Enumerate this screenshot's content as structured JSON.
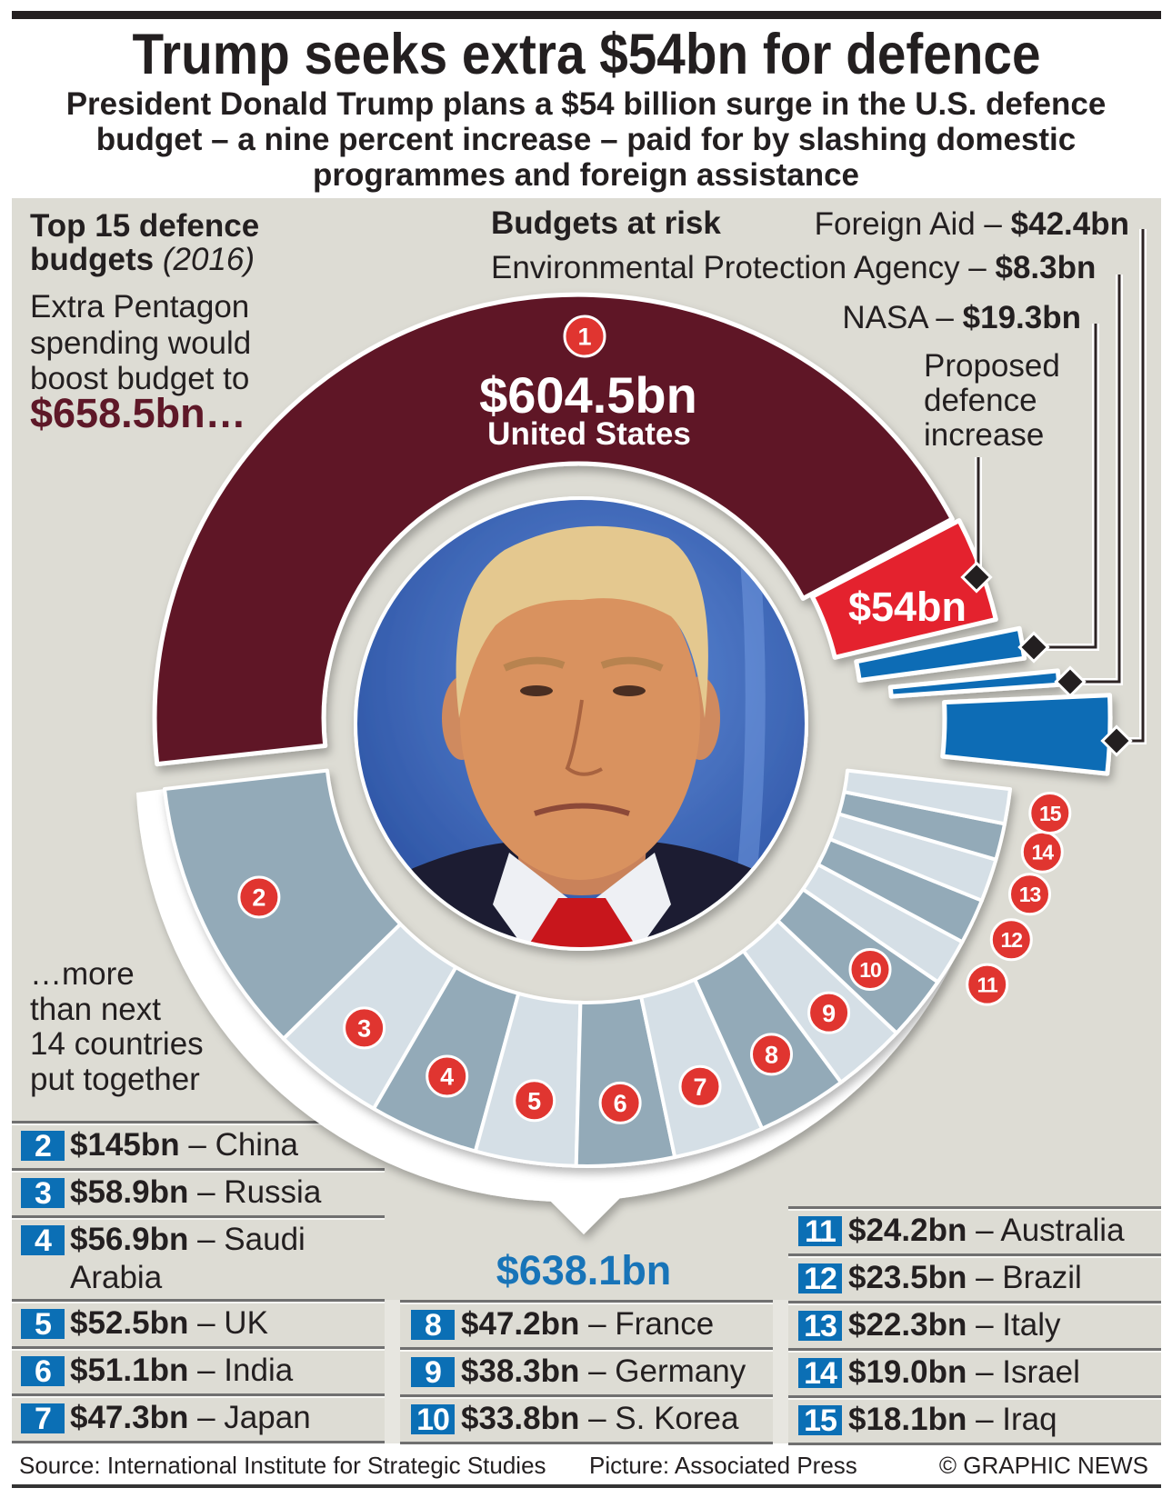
{
  "header": {
    "title": "Trump seeks extra $54bn for defence",
    "subtitle_lines": [
      "President Donald Trump plans a $54 billion surge in the U.S. defence",
      "budget – a nine percent increase – paid for by slashing domestic",
      "programmes and foreign assistance"
    ]
  },
  "separator": "–",
  "colors": {
    "panel": "#dddcd4",
    "us": "#5e1828",
    "increase": "#e4232d",
    "at_risk": "#0a6cb5",
    "slice_dark": "#93aab8",
    "slice_light": "#d5dfe6",
    "badge": "#e03530",
    "total": "#1874b8",
    "rank_box": "#0b6fb5"
  },
  "chart_data": {
    "type": "pie",
    "title_parts": [
      "Top 15 defence",
      "budgets",
      "(2016)"
    ],
    "series": [
      {
        "rank": 1,
        "country": "United States",
        "value": 604.5,
        "value_label": "$604.5bn"
      },
      {
        "rank": 2,
        "country": "China",
        "value": 145,
        "value_label": "$145bn"
      },
      {
        "rank": 3,
        "country": "Russia",
        "value": 58.9,
        "value_label": "$58.9bn"
      },
      {
        "rank": 4,
        "country": "Saudi Arabia",
        "value": 56.9,
        "value_label": "$56.9bn"
      },
      {
        "rank": 5,
        "country": "UK",
        "value": 52.5,
        "value_label": "$52.5bn"
      },
      {
        "rank": 6,
        "country": "India",
        "value": 51.1,
        "value_label": "$51.1bn"
      },
      {
        "rank": 7,
        "country": "Japan",
        "value": 47.3,
        "value_label": "$47.3bn"
      },
      {
        "rank": 8,
        "country": "France",
        "value": 47.2,
        "value_label": "$47.2bn"
      },
      {
        "rank": 9,
        "country": "Germany",
        "value": 38.3,
        "value_label": "$38.3bn"
      },
      {
        "rank": 10,
        "country": "S. Korea",
        "value": 33.8,
        "value_label": "$33.8bn"
      },
      {
        "rank": 11,
        "country": "Australia",
        "value": 24.2,
        "value_label": "$24.2bn"
      },
      {
        "rank": 12,
        "country": "Brazil",
        "value": 23.5,
        "value_label": "$23.5bn"
      },
      {
        "rank": 13,
        "country": "Italy",
        "value": 22.3,
        "value_label": "$22.3bn"
      },
      {
        "rank": 14,
        "country": "Israel",
        "value": 19.0,
        "value_label": "$19.0bn"
      },
      {
        "rank": 15,
        "country": "Iraq",
        "value": 18.1,
        "value_label": "$18.1bn"
      }
    ],
    "proposed_increase": {
      "value": 54,
      "value_label": "$54bn",
      "lines": [
        "Proposed",
        "defence",
        "increase"
      ]
    },
    "budgets_at_risk_heading": "Budgets at risk",
    "budgets_at_risk": [
      {
        "label": "Foreign Aid –",
        "value": 42.4,
        "value_label": "$42.4bn"
      },
      {
        "label": "Environmental Protection Agency –",
        "value": 8.3,
        "value_label": "$8.3bn"
      },
      {
        "label": "NASA –",
        "value": 19.3,
        "value_label": "$19.3bn"
      }
    ],
    "us_boosted": {
      "lines": [
        "Extra Pentagon",
        "spending would",
        "boost budget to"
      ],
      "value_label": "$658.5bn…"
    },
    "others_combined": {
      "lines": [
        "…more",
        "than next",
        "14 countries",
        "put together"
      ],
      "value_label": "$638.1bn"
    }
  },
  "footer": {
    "source": "Source: International Institute for Strategic Studies",
    "picture": "Picture: Associated Press",
    "credit": "© GRAPHIC NEWS"
  }
}
